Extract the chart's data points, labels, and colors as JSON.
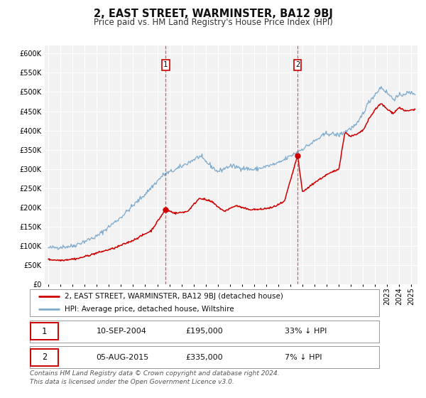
{
  "title": "2, EAST STREET, WARMINSTER, BA12 9BJ",
  "subtitle": "Price paid vs. HM Land Registry's House Price Index (HPI)",
  "ylim": [
    0,
    620000
  ],
  "yticks": [
    0,
    50000,
    100000,
    150000,
    200000,
    250000,
    300000,
    350000,
    400000,
    450000,
    500000,
    550000,
    600000
  ],
  "xlim_start": 1994.7,
  "xlim_end": 2025.5,
  "background_color": "#ffffff",
  "plot_bg_color": "#f2f2f2",
  "grid_color": "#ffffff",
  "red_line_color": "#cc0000",
  "blue_line_color": "#7eaacc",
  "marker_color": "#cc0000",
  "dashed_color": "#dd4444",
  "sale1_date": 2004.69,
  "sale1_price": 195000,
  "sale2_date": 2015.59,
  "sale2_price": 335000,
  "legend_line1": "2, EAST STREET, WARMINSTER, BA12 9BJ (detached house)",
  "legend_line2": "HPI: Average price, detached house, Wiltshire",
  "table_row1_num": "1",
  "table_row1_date": "10-SEP-2004",
  "table_row1_price": "£195,000",
  "table_row1_hpi": "33% ↓ HPI",
  "table_row2_num": "2",
  "table_row2_date": "05-AUG-2015",
  "table_row2_price": "£335,000",
  "table_row2_hpi": "7% ↓ HPI",
  "footnote": "Contains HM Land Registry data © Crown copyright and database right 2024.\nThis data is licensed under the Open Government Licence v3.0.",
  "title_fontsize": 10.5,
  "subtitle_fontsize": 8.5,
  "tick_fontsize": 7,
  "legend_fontsize": 7.5,
  "table_fontsize": 8,
  "footnote_fontsize": 6.5,
  "hpi_anchors_x": [
    1995.0,
    1997.0,
    1999.0,
    2001.0,
    2003.0,
    2004.5,
    2005.5,
    2007.5,
    2009.0,
    2010.0,
    2012.0,
    2014.0,
    2015.5,
    2016.5,
    2018.0,
    2019.0,
    2020.5,
    2021.5,
    2022.5,
    2023.5,
    2024.5,
    2025.3
  ],
  "hpi_anchors_y": [
    95000,
    100000,
    125000,
    175000,
    235000,
    285000,
    298000,
    333000,
    293000,
    308000,
    298000,
    315000,
    343000,
    362000,
    393000,
    388000,
    415000,
    475000,
    513000,
    482000,
    497000,
    497000
  ],
  "red_anchors_x": [
    1995.0,
    1996.0,
    1997.5,
    1999.0,
    2000.5,
    2002.0,
    2003.5,
    2004.69,
    2005.5,
    2006.5,
    2007.5,
    2008.5,
    2009.5,
    2010.5,
    2011.5,
    2012.5,
    2013.5,
    2014.5,
    2015.59,
    2016.0,
    2017.0,
    2018.0,
    2019.0,
    2019.5,
    2020.0,
    2020.5,
    2021.0,
    2021.5,
    2022.0,
    2022.5,
    2023.0,
    2023.5,
    2024.0,
    2024.5,
    2025.3
  ],
  "red_anchors_y": [
    65000,
    63000,
    68000,
    82000,
    95000,
    115000,
    140000,
    195000,
    185000,
    190000,
    225000,
    215000,
    190000,
    205000,
    195000,
    195000,
    200000,
    215000,
    335000,
    240000,
    265000,
    285000,
    300000,
    395000,
    385000,
    390000,
    400000,
    430000,
    455000,
    470000,
    455000,
    445000,
    460000,
    450000,
    455000
  ]
}
